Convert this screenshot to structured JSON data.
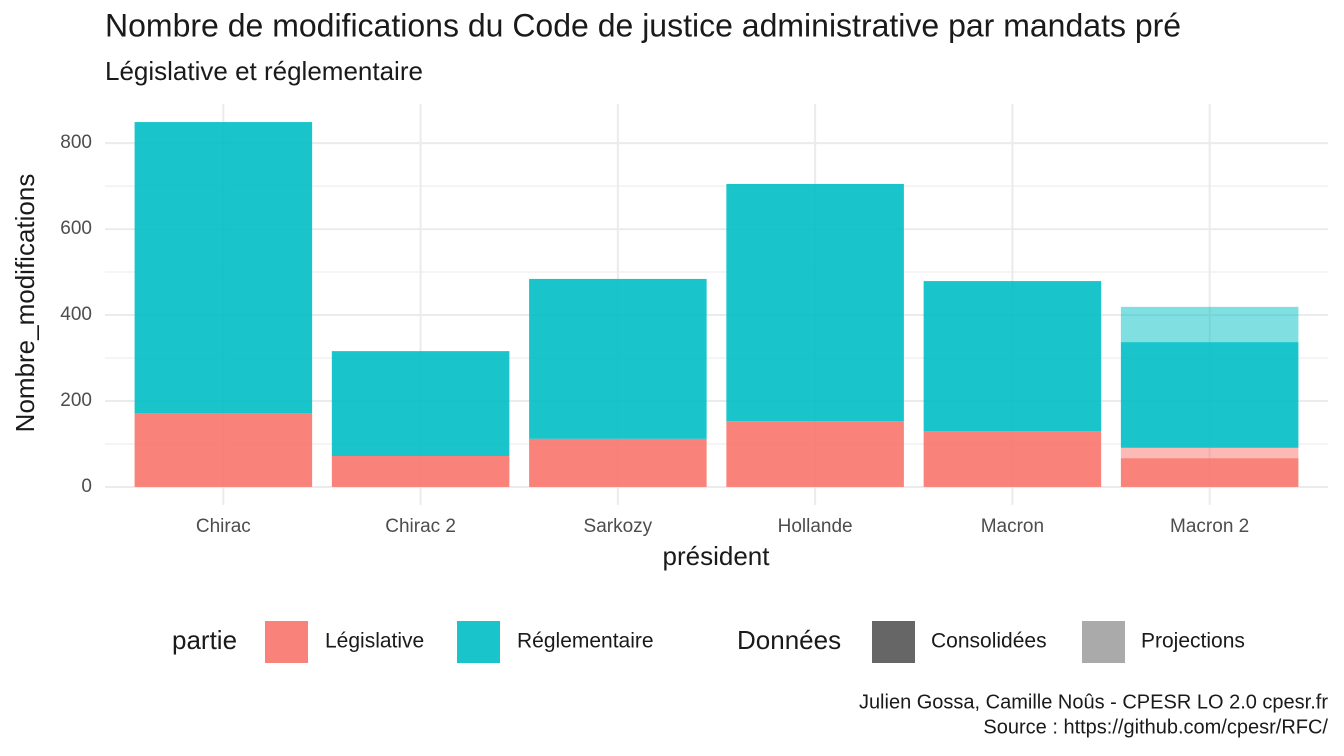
{
  "chart_data": {
    "type": "bar",
    "title": "Nombre de modifications du Code de justice administrative par mandats pré",
    "subtitle": "Législative et réglementaire",
    "x_label": "président",
    "y_label": "Nombre_modifications",
    "categories": [
      "Chirac",
      "Chirac 2",
      "Sarkozy",
      "Hollande",
      "Macron",
      "Macron 2"
    ],
    "series": [
      {
        "name": "Législative",
        "color": "#F8766D",
        "values": [
          172,
          72,
          112,
          153,
          130,
          67
        ],
        "projected": [
          null,
          null,
          null,
          null,
          null,
          24
        ]
      },
      {
        "name": "Réglementaire",
        "color": "#00BFC4",
        "values": [
          677,
          244,
          372,
          552,
          349,
          246
        ],
        "projected": [
          null,
          null,
          null,
          null,
          null,
          82
        ]
      }
    ],
    "stacked": true,
    "legend_title": "partie",
    "alpha_legend": {
      "title": "Données",
      "items": [
        {
          "name": "Consolidées",
          "color": "#666666",
          "opacity": 0.9
        },
        {
          "name": "Projections",
          "color": "#aaaaaa",
          "opacity": 0.5
        }
      ]
    },
    "legend_position": "bottom",
    "ylim": [
      -42,
      891
    ],
    "yticks": [
      0,
      200,
      400,
      600,
      800
    ],
    "minor_yticks": [
      100,
      300,
      500,
      700
    ],
    "grid": true,
    "caption": [
      "Julien Gossa, Camille Noûs - CPESR LO 2.0 cpesr.fr",
      "Source : https://github.com/cpesr/RFC/"
    ]
  }
}
